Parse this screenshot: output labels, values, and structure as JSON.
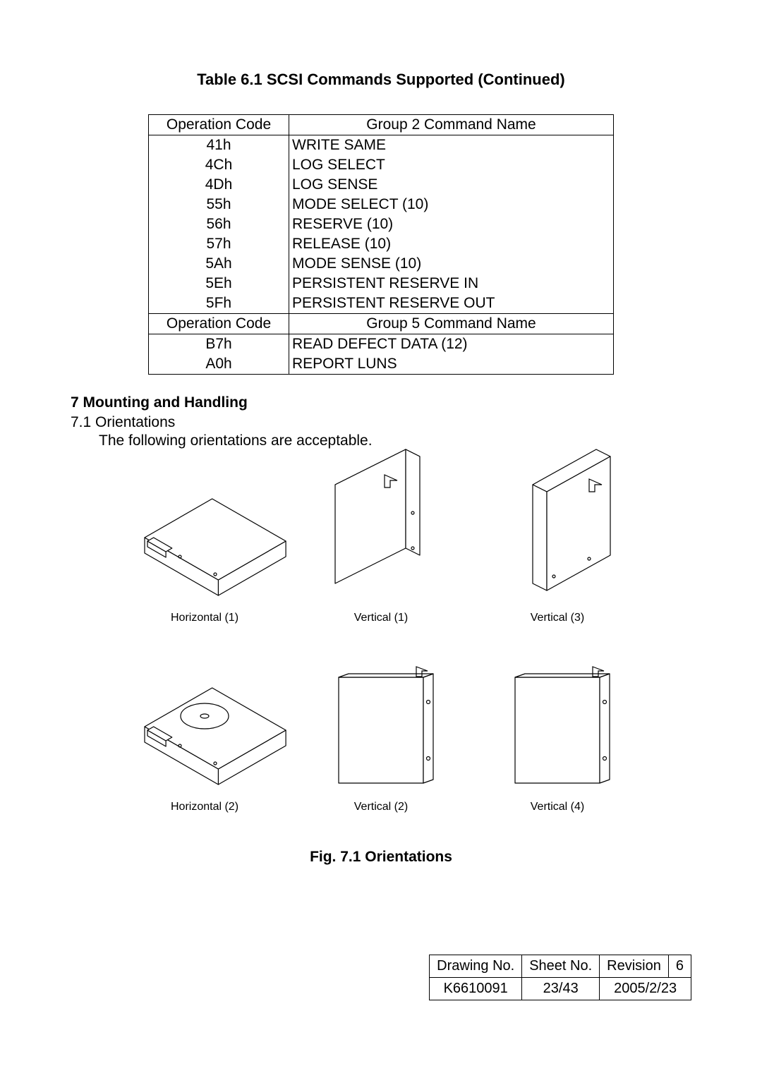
{
  "table_title": "Table 6.1 SCSI Commands Supported (Continued)",
  "scsi": {
    "group2_header_op": "Operation Code",
    "group2_header_name": "Group 2 Command Name",
    "group2_rows": [
      {
        "op": "41h",
        "name": "WRITE SAME"
      },
      {
        "op": "4Ch",
        "name": "LOG SELECT"
      },
      {
        "op": "4Dh",
        "name": "LOG SENSE"
      },
      {
        "op": "55h",
        "name": "MODE SELECT (10)"
      },
      {
        "op": "56h",
        "name": "RESERVE (10)"
      },
      {
        "op": "57h",
        "name": "RELEASE (10)"
      },
      {
        "op": "5Ah",
        "name": "MODE SENSE (10)"
      },
      {
        "op": "5Eh",
        "name": "PERSISTENT RESERVE IN"
      },
      {
        "op": "5Fh",
        "name": "PERSISTENT RESERVE OUT"
      }
    ],
    "group5_header_op": "Operation Code",
    "group5_header_name": "Group 5 Command Name",
    "group5_rows": [
      {
        "op": "B7h",
        "name": "READ DEFECT DATA (12)"
      },
      {
        "op": "A0h",
        "name": "REPORT LUNS"
      }
    ]
  },
  "section7": {
    "heading": "7    Mounting and Handling",
    "sub71": "7.1  Orientations",
    "sub71desc": "The following orientations are acceptable."
  },
  "orientations": {
    "row1": [
      {
        "label": "Horizontal (1)",
        "type": "h1"
      },
      {
        "label": "Vertical (1)",
        "type": "v1"
      },
      {
        "label": "Vertical (3)",
        "type": "v3"
      }
    ],
    "row2": [
      {
        "label": "Horizontal (2)",
        "type": "h2"
      },
      {
        "label": "Vertical (2)",
        "type": "v2"
      },
      {
        "label": "Vertical (4)",
        "type": "v4"
      }
    ],
    "stroke": "#000000",
    "fill": "#ffffff",
    "stroke_width": 1.2
  },
  "fig_title": "Fig. 7.1 Orientations",
  "rev": {
    "h_drawing": "Drawing No.",
    "h_sheet": "Sheet No.",
    "h_rev": "Revision",
    "h_revno": "6",
    "drawing": "K6610091",
    "sheet": "23/43",
    "date": "2005/2/23"
  }
}
